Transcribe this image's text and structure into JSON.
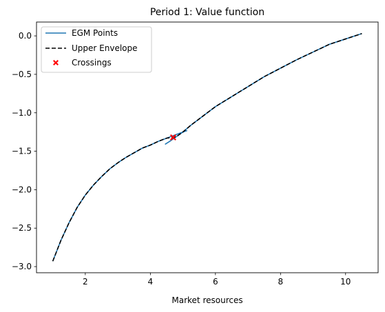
{
  "chart_data": {
    "type": "line",
    "title": "Period 1: Value function",
    "xlabel": "Market resources",
    "ylabel": "",
    "xlim": [
      0.5,
      11.0
    ],
    "ylim": [
      -3.08,
      0.18
    ],
    "xticks": [
      2,
      4,
      6,
      8,
      10
    ],
    "xtick_labels": [
      "2",
      "4",
      "6",
      "8",
      "10"
    ],
    "yticks": [
      0.0,
      -0.5,
      -1.0,
      -1.5,
      -2.0,
      -2.5,
      -3.0
    ],
    "ytick_labels": [
      "0.0",
      "−0.5",
      "−1.0",
      "−1.5",
      "−2.0",
      "−2.5",
      "−3.0"
    ],
    "grid": false,
    "legend_position": "top-left",
    "series": [
      {
        "name": "EGM Points",
        "color": "#1f77b4",
        "style": "solid",
        "segments": [
          {
            "x": [
              1.0,
              1.25,
              1.5,
              1.75,
              2.0,
              2.25,
              2.5,
              2.75,
              3.0,
              3.25,
              3.5,
              3.75,
              4.0,
              4.25,
              4.5,
              4.75,
              5.13
            ],
            "y": [
              -2.93,
              -2.66,
              -2.43,
              -2.23,
              -2.07,
              -1.94,
              -1.83,
              -1.73,
              -1.65,
              -1.58,
              -1.52,
              -1.46,
              -1.42,
              -1.37,
              -1.33,
              -1.29,
              -1.23
            ]
          },
          {
            "x": [
              4.45,
              4.6,
              4.8,
              5.0,
              5.25,
              5.5,
              5.75,
              6.0,
              6.5,
              7.0,
              7.5,
              8.0,
              8.5,
              9.0,
              9.5,
              10.0,
              10.5
            ],
            "y": [
              -1.41,
              -1.37,
              -1.31,
              -1.25,
              -1.16,
              -1.08,
              -1.0,
              -0.92,
              -0.79,
              -0.66,
              -0.53,
              -0.42,
              -0.31,
              -0.21,
              -0.11,
              -0.04,
              0.03
            ]
          }
        ]
      },
      {
        "name": "Upper Envelope",
        "color": "#000000",
        "style": "dashed",
        "segments": [
          {
            "x": [
              1.0,
              1.25,
              1.5,
              1.75,
              2.0,
              2.25,
              2.5,
              2.75,
              3.0,
              3.25,
              3.5,
              3.75,
              4.0,
              4.25,
              4.5,
              4.7,
              4.8,
              5.0,
              5.25,
              5.5,
              5.75,
              6.0,
              6.5,
              7.0,
              7.5,
              8.0,
              8.5,
              9.0,
              9.5,
              10.0,
              10.5
            ],
            "y": [
              -2.93,
              -2.66,
              -2.43,
              -2.23,
              -2.07,
              -1.94,
              -1.83,
              -1.73,
              -1.65,
              -1.58,
              -1.52,
              -1.46,
              -1.42,
              -1.37,
              -1.33,
              -1.32,
              -1.31,
              -1.25,
              -1.16,
              -1.08,
              -1.0,
              -0.92,
              -0.79,
              -0.66,
              -0.53,
              -0.42,
              -0.31,
              -0.21,
              -0.11,
              -0.04,
              0.03
            ]
          }
        ]
      },
      {
        "name": "Crossings",
        "color": "#ff0000",
        "style": "marker-x",
        "points": [
          {
            "x": 4.7,
            "y": -1.32
          }
        ]
      }
    ]
  }
}
